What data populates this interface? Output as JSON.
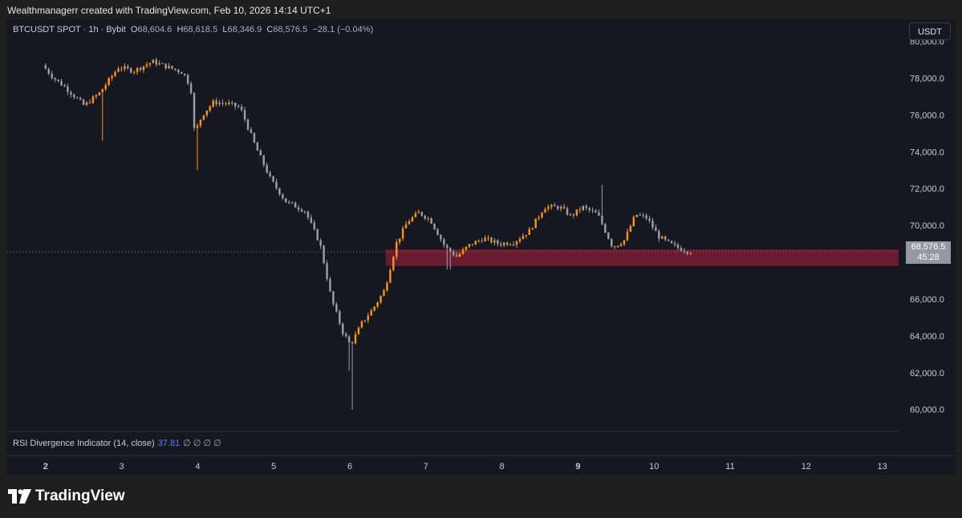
{
  "caption": "Wealthmanagerr created with TradingView.com, Feb 10, 2026 14:14 UTC+1",
  "legend": {
    "symbol": "BTCUSDT SPOT · 1h · Bybit",
    "o_label": "O",
    "o_value": "68,604.6",
    "h_label": "H",
    "h_value": "68,618.5",
    "l_label": "L",
    "l_value": "68,346.9",
    "c_label": "C",
    "c_value": "68,576.5",
    "change": "−28.1 (−0.04%)"
  },
  "currency_button": "USDT",
  "price_badge": {
    "price": "68,576.5",
    "countdown": "45:28"
  },
  "rsi": {
    "label": "RSI Divergence Indicator (14, close)",
    "value": "37.81",
    "na": "∅ ∅ ∅ ∅"
  },
  "brand": {
    "name": "TradingView"
  },
  "colors": {
    "up": "#f7931a",
    "down": "#9a9ea8",
    "zone": "#7a1c33",
    "background": "#151821",
    "grid": "#22262f",
    "text": "#c8cbd3"
  },
  "chart_data": {
    "type": "candlestick",
    "symbol": "BTCUSDT",
    "interval": "1h",
    "y_ticks": [
      "80,000.0",
      "78,000.0",
      "76,000.0",
      "74,000.0",
      "72,000.0",
      "70,000.0",
      "66,000.0",
      "64,000.0",
      "62,000.0",
      "60,000.0"
    ],
    "y_tick_values": [
      80000,
      78000,
      76000,
      74000,
      72000,
      70000,
      66000,
      64000,
      62000,
      60000
    ],
    "ylim": [
      58900,
      81200
    ],
    "x_ticks": [
      "2",
      "3",
      "4",
      "5",
      "6",
      "7",
      "8",
      "9",
      "10",
      "11",
      "12",
      "13"
    ],
    "x_tick_bold": [
      true,
      false,
      false,
      false,
      false,
      false,
      false,
      true,
      false,
      false,
      false,
      false
    ],
    "x_start_day": 2,
    "x_end_day": 13.35,
    "last_price": 68576.5,
    "zone": {
      "low": 67800,
      "high": 68700,
      "from_day": 6.47
    },
    "price_path": [
      {
        "day": 2.0,
        "price": 78700
      },
      {
        "day": 2.15,
        "price": 78000
      },
      {
        "day": 2.3,
        "price": 77500
      },
      {
        "day": 2.55,
        "price": 76500
      },
      {
        "day": 2.75,
        "price": 77200
      },
      {
        "day": 3.0,
        "price": 78600
      },
      {
        "day": 3.2,
        "price": 78400
      },
      {
        "day": 3.45,
        "price": 78900
      },
      {
        "day": 3.65,
        "price": 78600
      },
      {
        "day": 3.85,
        "price": 78300
      },
      {
        "day": 3.95,
        "price": 77500
      },
      {
        "day": 4.0,
        "price": 75000
      },
      {
        "day": 4.1,
        "price": 76000
      },
      {
        "day": 4.25,
        "price": 76700
      },
      {
        "day": 4.45,
        "price": 76600
      },
      {
        "day": 4.6,
        "price": 76400
      },
      {
        "day": 4.8,
        "price": 74300
      },
      {
        "day": 5.0,
        "price": 72500
      },
      {
        "day": 5.2,
        "price": 71300
      },
      {
        "day": 5.45,
        "price": 70800
      },
      {
        "day": 5.65,
        "price": 69000
      },
      {
        "day": 5.8,
        "price": 66000
      },
      {
        "day": 5.95,
        "price": 64200
      },
      {
        "day": 6.05,
        "price": 63500
      },
      {
        "day": 6.2,
        "price": 64700
      },
      {
        "day": 6.35,
        "price": 65500
      },
      {
        "day": 6.5,
        "price": 66500
      },
      {
        "day": 6.65,
        "price": 69000
      },
      {
        "day": 6.8,
        "price": 70200
      },
      {
        "day": 6.95,
        "price": 70700
      },
      {
        "day": 7.1,
        "price": 70300
      },
      {
        "day": 7.3,
        "price": 68800
      },
      {
        "day": 7.45,
        "price": 68300
      },
      {
        "day": 7.6,
        "price": 68900
      },
      {
        "day": 7.8,
        "price": 69300
      },
      {
        "day": 8.0,
        "price": 69000
      },
      {
        "day": 8.2,
        "price": 69100
      },
      {
        "day": 8.4,
        "price": 69700
      },
      {
        "day": 8.6,
        "price": 71000
      },
      {
        "day": 8.8,
        "price": 71000
      },
      {
        "day": 8.95,
        "price": 70500
      },
      {
        "day": 9.1,
        "price": 71000
      },
      {
        "day": 9.3,
        "price": 70600
      },
      {
        "day": 9.5,
        "price": 68800
      },
      {
        "day": 9.65,
        "price": 69200
      },
      {
        "day": 9.8,
        "price": 70600
      },
      {
        "day": 9.95,
        "price": 70400
      },
      {
        "day": 10.1,
        "price": 69400
      },
      {
        "day": 10.25,
        "price": 69000
      },
      {
        "day": 10.35,
        "price": 68800
      },
      {
        "day": 10.48,
        "price": 68600
      }
    ],
    "spikes": [
      {
        "day": 6.05,
        "low": 60000
      },
      {
        "day": 6.0,
        "low": 62100
      },
      {
        "day": 4.0,
        "low": 73000
      },
      {
        "day": 2.75,
        "low": 74600
      },
      {
        "day": 9.3,
        "high": 72200
      },
      {
        "day": 7.3,
        "low": 67600
      }
    ],
    "candle_count": 205
  }
}
